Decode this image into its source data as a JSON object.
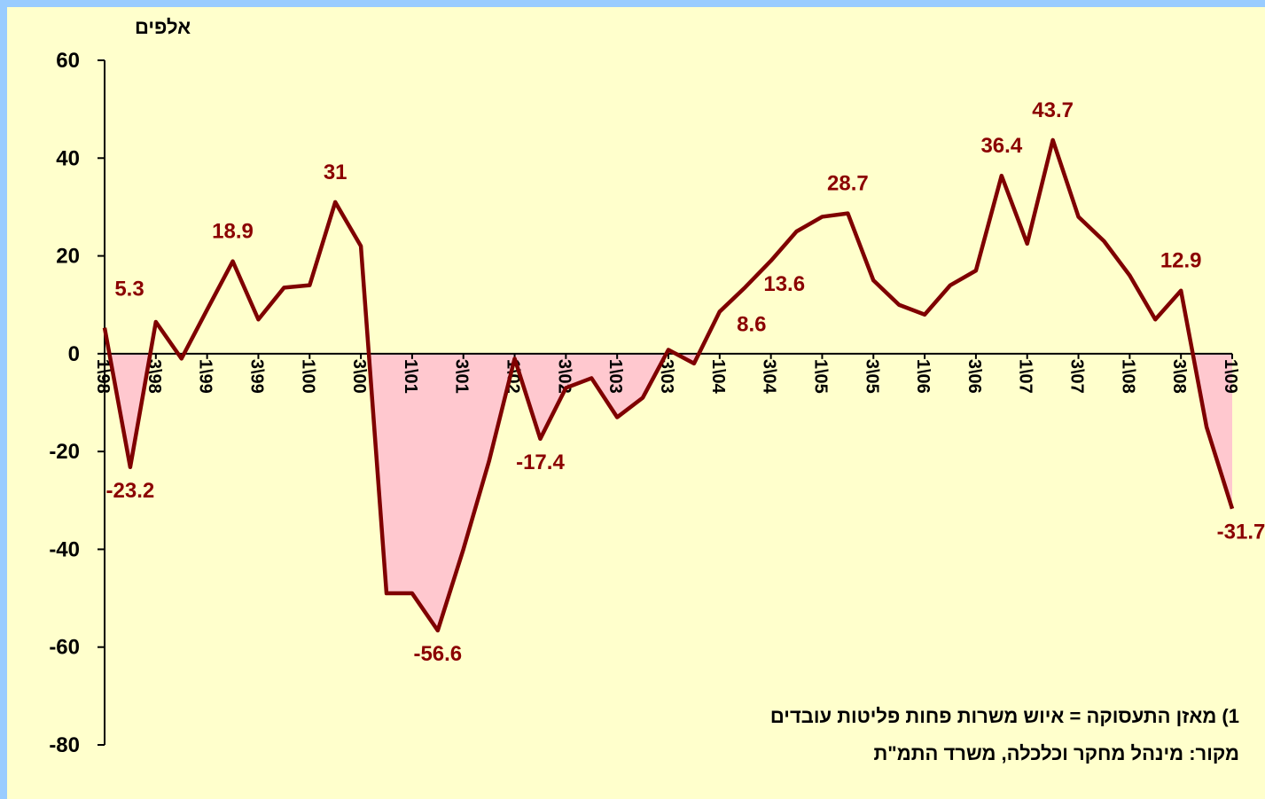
{
  "chart_data": {
    "type": "line",
    "y_label": "אלפים",
    "categories": [
      "1\\98",
      null,
      "3\\98",
      null,
      "1\\99",
      null,
      "3\\99",
      null,
      "1\\00",
      null,
      "3\\00",
      null,
      "1\\01",
      null,
      "3\\01",
      null,
      "1\\02",
      null,
      "3\\02",
      null,
      "1\\03",
      null,
      "3\\03",
      null,
      "1\\04",
      null,
      "3\\04",
      null,
      "1\\05",
      null,
      "3\\05",
      null,
      "1\\06",
      null,
      "3\\06",
      null,
      "1\\07",
      null,
      "3\\07",
      null,
      "1\\08",
      null,
      "3\\08",
      null,
      "1\\09"
    ],
    "series": [
      {
        "color": "#7f0000",
        "negative_fill": "#ffc8cf",
        "values": [
          5.3,
          -23.2,
          6.5,
          -1,
          9,
          18.9,
          7,
          13.5,
          14,
          31,
          22,
          -49,
          -49,
          -56.6,
          -40,
          -22,
          -1,
          -17.4,
          -7,
          -5,
          -13,
          -9,
          0.8,
          -2,
          8.6,
          13.6,
          19,
          25,
          28,
          28.7,
          15,
          10,
          8,
          14,
          17,
          36.4,
          22.5,
          43.7,
          28,
          23,
          16,
          7,
          12.9,
          -15,
          -31.7
        ],
        "value_labels": [
          "5.3",
          "-23.2",
          null,
          null,
          null,
          "18.9",
          null,
          null,
          null,
          "31",
          null,
          null,
          null,
          "-56.6",
          null,
          null,
          null,
          "-17.4",
          null,
          null,
          null,
          null,
          null,
          null,
          "8.6",
          "13.6",
          null,
          null,
          null,
          "28.7",
          null,
          null,
          null,
          null,
          null,
          "36.4",
          null,
          "43.7",
          null,
          null,
          null,
          null,
          "12.9",
          null,
          "-31.7"
        ]
      }
    ],
    "ylim": [
      -80,
      60
    ],
    "yticks": [
      -80,
      -60,
      -40,
      -20,
      0,
      20,
      40,
      60
    ],
    "notes": [
      "1) מאזן התעסוקה = איוש משרות פחות פליטות עובדים",
      "מקור: מינהל מחקר וכלכלה, משרד התמ\"ת"
    ]
  }
}
